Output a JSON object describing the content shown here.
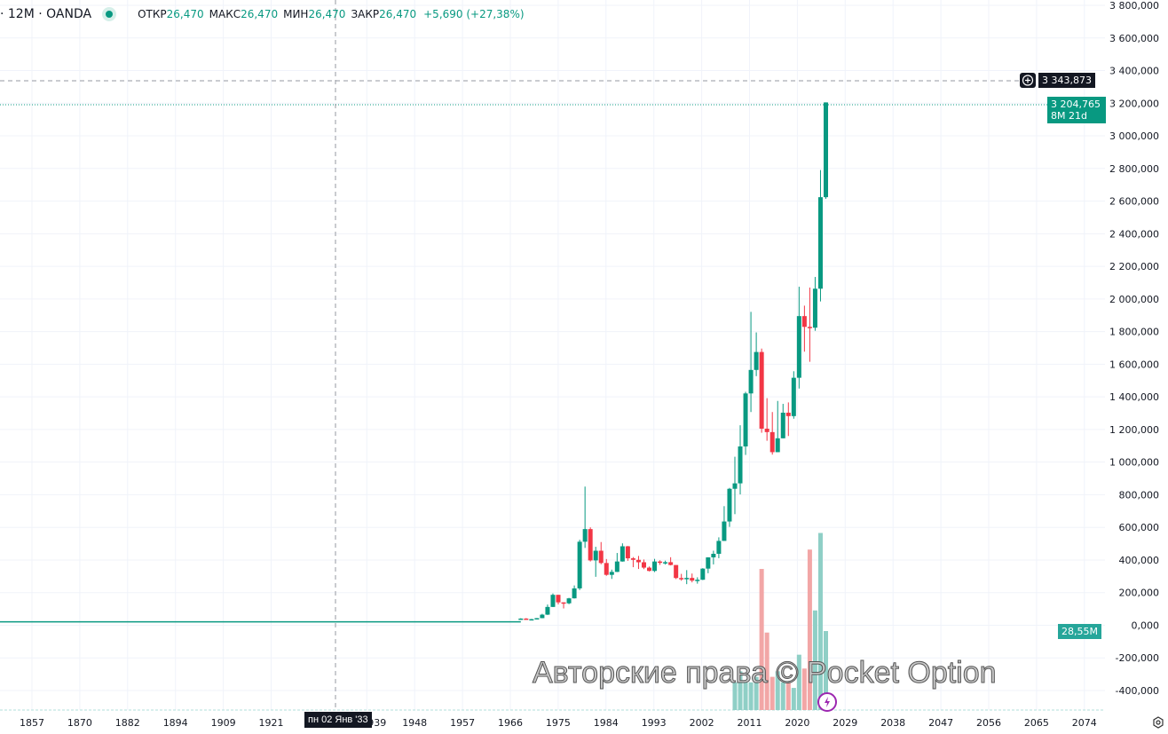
{
  "legend": {
    "symbol": "· 12M · OANDA",
    "open_label": "ОТКР",
    "open": "26,470",
    "high_label": "МАКС",
    "high": "26,470",
    "low_label": "МИН",
    "low": "26,470",
    "close_label": "ЗАКР",
    "close": "26,470",
    "change": "+5,690 (+27,38%)"
  },
  "crosshair": {
    "price": "3 343,873",
    "date": "пн 02 Янв '33"
  },
  "last_price": {
    "price": "3 204,765",
    "countdown": "8M 21d"
  },
  "volume_tag": "28,55M",
  "watermark": "Авторские права © Pocket Option",
  "colors": {
    "up": "#089981",
    "down": "#f23645",
    "vol_up": "#8fcfc6",
    "vol_down": "#f2a6a6"
  },
  "chart_data": {
    "type": "candlestick",
    "title": "12M · OANDA",
    "price_ticks": [
      "3 800,000",
      "3 600,000",
      "3 400,000",
      "3 200,000",
      "3 000,000",
      "2 800,000",
      "2 600,000",
      "2 400,000",
      "2 200,000",
      "2 000,000",
      "1 800,000",
      "1 600,000",
      "1 400,000",
      "1 200,000",
      "1 000,000",
      "800,000",
      "600,000",
      "400,000",
      "200,000",
      "0,000",
      "-200,000",
      "-400,000"
    ],
    "price_tick_values": [
      3800000,
      3600000,
      3400000,
      3200000,
      3000000,
      2800000,
      2600000,
      2400000,
      2200000,
      2000000,
      1800000,
      1600000,
      1400000,
      1200000,
      1000000,
      800000,
      600000,
      400000,
      200000,
      0,
      -200000,
      -400000
    ],
    "ylim": [
      -400000,
      3800000
    ],
    "time_ticks": [
      "1857",
      "1870",
      "1882",
      "1894",
      "1909",
      "1921",
      "1939",
      "1948",
      "1957",
      "1966",
      "1975",
      "1984",
      "1993",
      "2002",
      "2011",
      "2020",
      "2029",
      "2038",
      "2047",
      "2056",
      "2065",
      "2074"
    ],
    "time_tick_years": [
      1857,
      1870,
      1882,
      1894,
      1909,
      1921,
      1939,
      1948,
      1957,
      1966,
      1975,
      1984,
      1993,
      2002,
      2011,
      2020,
      2029,
      2038,
      2047,
      2056,
      2065,
      2074
    ],
    "xlim": [
      1851,
      2083
    ],
    "flat_history": {
      "from": 1851,
      "to": 1968,
      "value": 20670
    },
    "candles": [
      [
        1968,
        35000,
        43000,
        35000,
        41000
      ],
      [
        1969,
        41000,
        43800,
        35000,
        35200
      ],
      [
        1970,
        35200,
        39000,
        34800,
        37400
      ],
      [
        1971,
        37400,
        44000,
        37300,
        43600
      ],
      [
        1972,
        43600,
        70000,
        43000,
        64900
      ],
      [
        1973,
        64900,
        127000,
        63000,
        112300
      ],
      [
        1974,
        112300,
        195000,
        112000,
        186500
      ],
      [
        1975,
        186500,
        186000,
        128000,
        140300
      ],
      [
        1976,
        140300,
        141000,
        103000,
        134500
      ],
      [
        1977,
        134500,
        168000,
        129000,
        164950
      ],
      [
        1978,
        164950,
        244000,
        164000,
        226000
      ],
      [
        1979,
        226000,
        524000,
        216000,
        512000
      ],
      [
        1980,
        512000,
        850000,
        474000,
        589500
      ],
      [
        1981,
        589500,
        600000,
        391000,
        397500
      ],
      [
        1982,
        397500,
        481000,
        297000,
        456900
      ],
      [
        1983,
        456900,
        510000,
        374000,
        381500
      ],
      [
        1984,
        381500,
        406000,
        303000,
        309000
      ],
      [
        1985,
        309000,
        341000,
        284000,
        327000
      ],
      [
        1986,
        327000,
        443000,
        326000,
        390900
      ],
      [
        1987,
        390900,
        502000,
        390000,
        484100
      ],
      [
        1988,
        484100,
        486000,
        395000,
        410300
      ],
      [
        1989,
        410300,
        418000,
        356000,
        401000
      ],
      [
        1990,
        401000,
        425000,
        345000,
        386200
      ],
      [
        1991,
        386200,
        403000,
        344000,
        353200
      ],
      [
        1992,
        353200,
        360000,
        330000,
        333000
      ],
      [
        1993,
        333000,
        407000,
        326000,
        390800
      ],
      [
        1994,
        390800,
        398000,
        370000,
        382500
      ],
      [
        1995,
        382500,
        396000,
        372000,
        386700
      ],
      [
        1996,
        386700,
        417000,
        367000,
        369300
      ],
      [
        1997,
        369300,
        368000,
        283000,
        289500
      ],
      [
        1998,
        289500,
        315000,
        273000,
        288200
      ],
      [
        1999,
        288200,
        338000,
        252000,
        290200
      ],
      [
        2000,
        290200,
        317000,
        263000,
        273600
      ],
      [
        2001,
        273600,
        294000,
        255000,
        279000
      ],
      [
        2002,
        279000,
        350000,
        277000,
        347200
      ],
      [
        2003,
        347200,
        417000,
        319000,
        416100
      ],
      [
        2004,
        416100,
        457000,
        373000,
        438000
      ],
      [
        2005,
        438000,
        539000,
        411000,
        517000
      ],
      [
        2006,
        517000,
        730000,
        517000,
        636000
      ],
      [
        2007,
        636000,
        842000,
        603000,
        836500
      ],
      [
        2008,
        836500,
        1033000,
        681000,
        869800
      ],
      [
        2009,
        869800,
        1226000,
        802000,
        1096000
      ],
      [
        2010,
        1096000,
        1431000,
        1044000,
        1421000
      ],
      [
        2011,
        1421000,
        1921000,
        1307000,
        1565000
      ],
      [
        2012,
        1565000,
        1795000,
        1527000,
        1675000
      ],
      [
        2013,
        1675000,
        1696000,
        1180000,
        1205000
      ],
      [
        2014,
        1205000,
        1392000,
        1131000,
        1184000
      ],
      [
        2015,
        1184000,
        1307000,
        1046000,
        1061000
      ],
      [
        2016,
        1061000,
        1375000,
        1061000,
        1146000
      ],
      [
        2017,
        1146000,
        1357000,
        1146000,
        1303000
      ],
      [
        2018,
        1303000,
        1366000,
        1160000,
        1282000
      ],
      [
        2019,
        1282000,
        1557000,
        1266000,
        1517000
      ],
      [
        2020,
        1517000,
        2075000,
        1451000,
        1895000
      ],
      [
        2021,
        1895000,
        1959000,
        1677000,
        1829000
      ],
      [
        2022,
        1829000,
        2070000,
        1615000,
        1824000
      ],
      [
        2023,
        1824000,
        2135000,
        1805000,
        2063000
      ],
      [
        2024,
        2063000,
        2790000,
        1985000,
        2624000
      ],
      [
        2025,
        2624000,
        3204765,
        2614000,
        3204765
      ]
    ],
    "volume_unit": "M",
    "volumes": [
      [
        2008,
        10,
        "up"
      ],
      [
        2009,
        14,
        "up"
      ],
      [
        2010,
        10,
        "up"
      ],
      [
        2011,
        10,
        "up"
      ],
      [
        2012,
        12,
        "up"
      ],
      [
        2013,
        51,
        "down"
      ],
      [
        2014,
        28,
        "down"
      ],
      [
        2015,
        12,
        "down"
      ],
      [
        2016,
        14,
        "up"
      ],
      [
        2017,
        10,
        "up"
      ],
      [
        2018,
        10,
        "down"
      ],
      [
        2019,
        8,
        "up"
      ],
      [
        2020,
        20,
        "up"
      ],
      [
        2021,
        15,
        "down"
      ],
      [
        2022,
        58,
        "down"
      ],
      [
        2023,
        36,
        "up"
      ],
      [
        2024,
        64,
        "up"
      ],
      [
        2025,
        28.55,
        "up"
      ]
    ]
  }
}
